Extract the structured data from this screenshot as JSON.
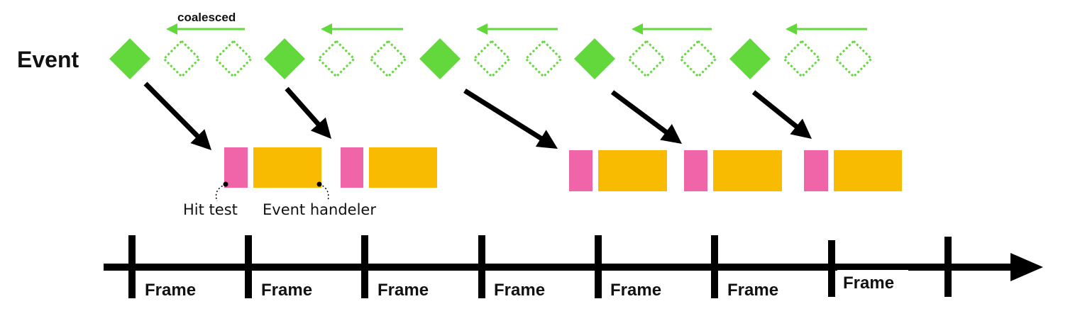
{
  "labels": {
    "event": "Event",
    "coalesced": "coalesced",
    "hit_test": "Hit test",
    "event_handler": "Event handeler"
  },
  "frames": [
    "Frame",
    "Frame",
    "Frame",
    "Frame",
    "Frame",
    "Frame",
    "Frame"
  ],
  "colors": {
    "event_fill": "#62d83c",
    "coalesced_outline": "#62d83c",
    "arrow_green": "#62d83c",
    "hit_test": "#f064a8",
    "event_handler": "#f8bb02",
    "axis": "#000000"
  },
  "icons": {
    "event": "filled-diamond",
    "coalesced_event": "dotted-diamond",
    "timeline": "arrow-right"
  }
}
